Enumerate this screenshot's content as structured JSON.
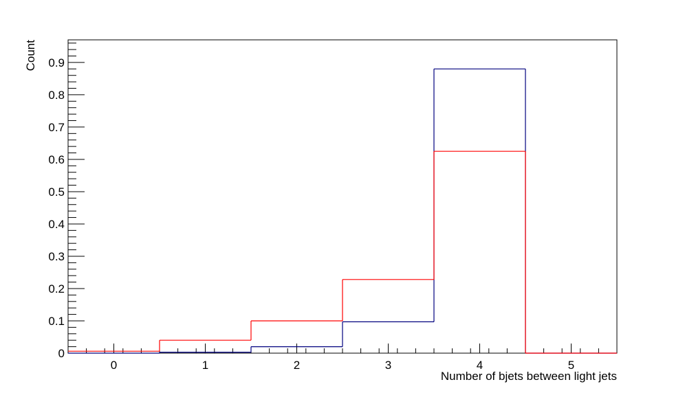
{
  "chart_data": {
    "type": "bar",
    "title": "",
    "xlabel": "Number of bjets between light jets",
    "ylabel": "Count",
    "xlim": [
      -0.5,
      5.5
    ],
    "ylim": [
      0,
      0.97
    ],
    "x_ticks": [
      "0",
      "1",
      "2",
      "3",
      "4",
      "5"
    ],
    "y_ticks": [
      "0",
      "0.1",
      "0.2",
      "0.3",
      "0.4",
      "0.5",
      "0.6",
      "0.7",
      "0.8",
      "0.9"
    ],
    "grid": false,
    "bin_centers": [
      0,
      1,
      2,
      3,
      4,
      5
    ],
    "series": [
      {
        "color": "#00007f",
        "values": [
          0.0,
          0.003,
          0.02,
          0.097,
          0.88,
          0.0
        ]
      },
      {
        "color": "#ff0000",
        "values": [
          0.006,
          0.04,
          0.1,
          0.228,
          0.625,
          0.0
        ]
      }
    ]
  }
}
